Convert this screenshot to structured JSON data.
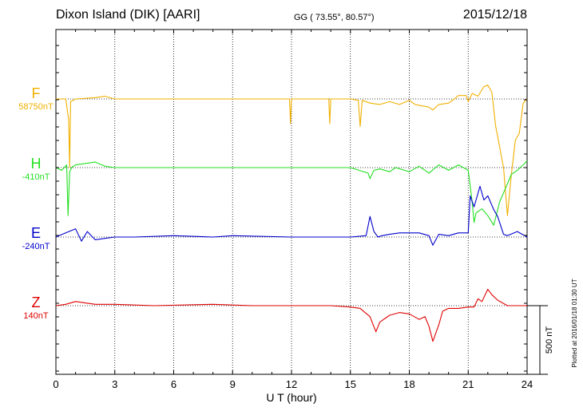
{
  "header": {
    "station": "Dixon Island (DIK)  [AARI]",
    "coords": "GG ( 73.55°,  80.57°)",
    "date": "2015/12/18"
  },
  "plotted_note": "Plotted at 2016/01/18 01:30 UT",
  "scale_bar_label": "500 nT",
  "colors": {
    "F": "#f0b000",
    "H": "#22e022",
    "E": "#0000cc",
    "Z": "#e00000"
  },
  "chart_data": {
    "type": "line",
    "xlabel": "U T (hour)",
    "ylabel": "",
    "xlim": [
      0,
      24
    ],
    "x_ticks": [
      "0",
      "3",
      "6",
      "9",
      "12",
      "15",
      "18",
      "21",
      "24"
    ],
    "y_unit": "nT",
    "grid": "vertical dotted lines every 3 hours",
    "scale_bar_nT": 500,
    "series": [
      {
        "name": "F",
        "baseline_label": "58750nT",
        "x": [
          0,
          0.5,
          0.65,
          0.7,
          0.75,
          1,
          2,
          2.5,
          3,
          5,
          8,
          10,
          11,
          11.9,
          11.95,
          12,
          12.5,
          13.9,
          13.95,
          14,
          15,
          15.4,
          15.5,
          15.6,
          16,
          16.5,
          17,
          17.5,
          18,
          18.3,
          19,
          19.2,
          19.5,
          20,
          20.3,
          20.5,
          20.9,
          21,
          21.2,
          21.5,
          21.8,
          22,
          22.2,
          22.4,
          22.6,
          22.8,
          23,
          23.2,
          23.4,
          23.6,
          23.8,
          24
        ],
        "values": [
          0,
          0,
          -150,
          -500,
          -20,
          0,
          10,
          20,
          0,
          0,
          0,
          0,
          0,
          0,
          -180,
          0,
          0,
          0,
          -180,
          0,
          0,
          -10,
          -200,
          -10,
          -30,
          -40,
          -20,
          -40,
          -10,
          -40,
          -60,
          -80,
          -40,
          -30,
          0,
          25,
          25,
          -20,
          40,
          20,
          90,
          100,
          50,
          -200,
          -350,
          -500,
          -850,
          -550,
          -300,
          -250,
          -30,
          0
        ]
      },
      {
        "name": "H",
        "baseline_label": "-410nT",
        "x": [
          0,
          0.3,
          0.55,
          0.62,
          0.7,
          0.8,
          1,
          2,
          2.5,
          3,
          5,
          8,
          10,
          12,
          15,
          15.9,
          16,
          16.2,
          16.5,
          17,
          17.3,
          18,
          18.5,
          19,
          19.5,
          20,
          20.5,
          21,
          21.2,
          21.3,
          21.4,
          21.7,
          22,
          22.3,
          22.6,
          22.9,
          23.2,
          23.5,
          23.8,
          24
        ],
        "values": [
          0,
          -20,
          20,
          -350,
          -30,
          0,
          20,
          40,
          10,
          0,
          0,
          0,
          0,
          0,
          0,
          -40,
          -80,
          -20,
          -10,
          -30,
          0,
          -30,
          10,
          -40,
          20,
          -20,
          20,
          -20,
          -250,
          -400,
          -330,
          -300,
          -350,
          -420,
          -250,
          -150,
          -50,
          -20,
          20,
          50
        ]
      },
      {
        "name": "E",
        "baseline_label": "-240nT",
        "x": [
          0,
          0.5,
          1,
          1.3,
          1.6,
          2,
          2.5,
          3,
          4,
          6,
          8,
          9,
          12,
          15,
          15.8,
          16,
          16.2,
          16.4,
          16.6,
          17,
          17.5,
          18,
          18.5,
          19,
          19.2,
          19.5,
          20,
          20.5,
          21,
          21.1,
          21.3,
          21.6,
          21.8,
          22,
          22.3,
          22.5,
          22.8,
          23,
          23.5,
          24
        ],
        "values": [
          0,
          30,
          60,
          -30,
          40,
          -20,
          -10,
          0,
          0,
          10,
          0,
          10,
          0,
          0,
          10,
          150,
          40,
          0,
          10,
          20,
          30,
          30,
          30,
          10,
          -60,
          20,
          10,
          30,
          30,
          300,
          220,
          370,
          270,
          300,
          200,
          150,
          20,
          10,
          40,
          0
        ]
      },
      {
        "name": "Z",
        "baseline_label": "140nT",
        "x": [
          0,
          0.5,
          1,
          2,
          3,
          5,
          8,
          10,
          12,
          14,
          15,
          15.5,
          16,
          16.3,
          16.5,
          17,
          17.5,
          18,
          18.5,
          18.8,
          19,
          19.2,
          19.5,
          19.7,
          20,
          20.5,
          21,
          21.3,
          21.5,
          21.7,
          22,
          22.2,
          22.5,
          23,
          23.5,
          24
        ],
        "values": [
          0,
          10,
          30,
          10,
          10,
          0,
          10,
          0,
          0,
          0,
          -10,
          -20,
          -80,
          -190,
          -120,
          -70,
          -50,
          -60,
          -100,
          -80,
          -150,
          -260,
          -140,
          -40,
          -20,
          -20,
          -10,
          -10,
          50,
          30,
          120,
          80,
          40,
          0,
          0,
          0
        ]
      }
    ]
  }
}
